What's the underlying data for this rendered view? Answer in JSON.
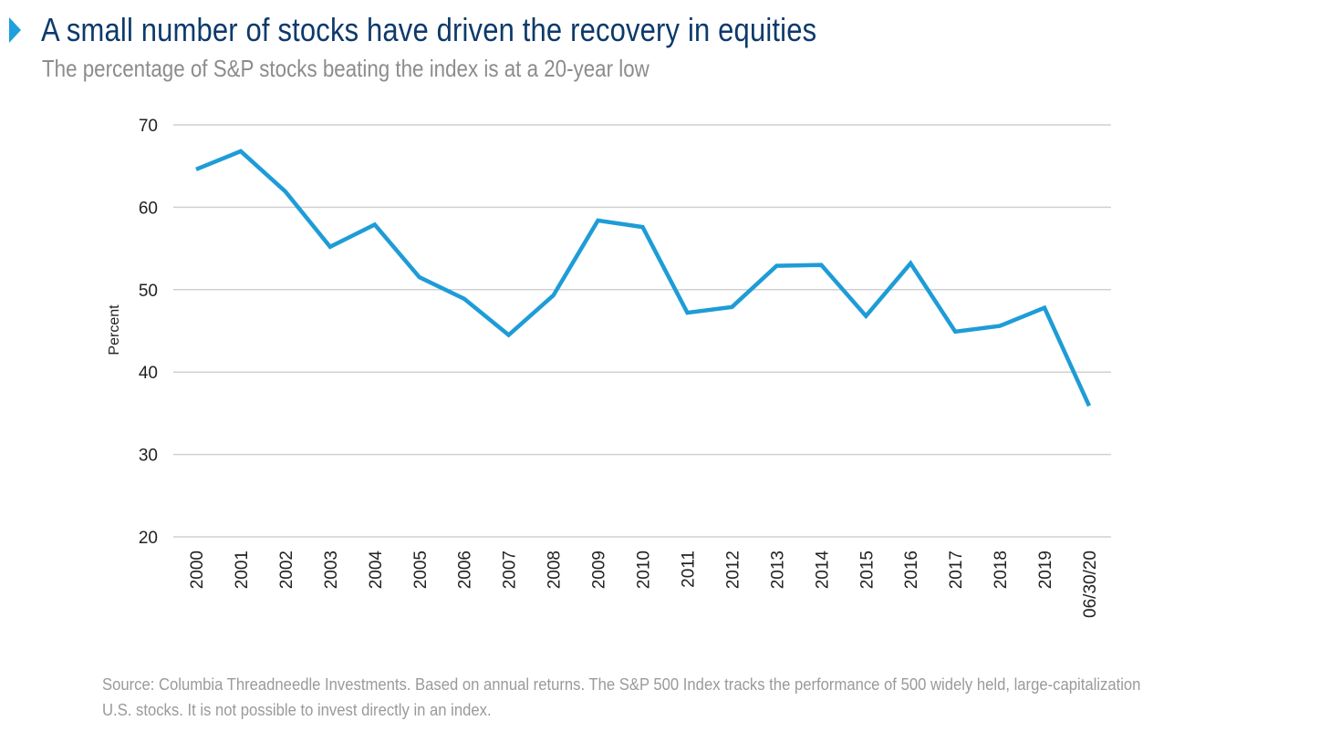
{
  "header": {
    "title": "A small number of stocks have driven the recovery in equities",
    "subtitle": "The percentage of S&P stocks beating the index is at a 20-year low"
  },
  "footer": {
    "source": "Source: Columbia Threadneedle Investments. Based on annual returns. The S&P 500 Index tracks the performance of 500 widely held, large-capitalization U.S. stocks. It is not possible to invest directly in an index."
  },
  "colors": {
    "line": "#1e9cd7",
    "title": "#0d3a6b",
    "grid": "#d0d0d0"
  },
  "chart_data": {
    "type": "line",
    "ylabel": "Percent",
    "ylim": [
      20,
      70
    ],
    "yticks": [
      20,
      30,
      40,
      50,
      60,
      70
    ],
    "grid": true,
    "categories": [
      "2000",
      "2001",
      "2002",
      "2003",
      "2004",
      "2005",
      "2006",
      "2007",
      "2008",
      "2009",
      "2010",
      "2011",
      "2012",
      "2013",
      "2014",
      "2015",
      "2016",
      "2017",
      "2018",
      "2019",
      "06/30/20"
    ],
    "series": [
      {
        "values": [
          64.6,
          66.8,
          61.9,
          55.2,
          57.9,
          51.5,
          48.9,
          44.5,
          49.3,
          58.4,
          57.6,
          47.2,
          47.9,
          52.9,
          53.0,
          46.8,
          53.2,
          44.9,
          45.6,
          47.8,
          35.9
        ]
      }
    ]
  }
}
